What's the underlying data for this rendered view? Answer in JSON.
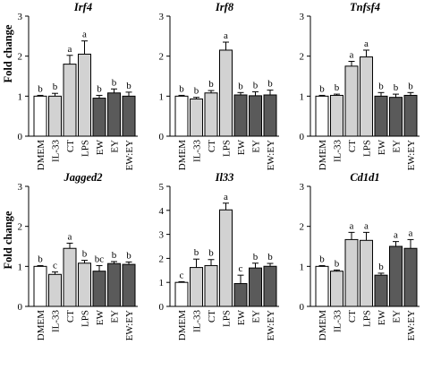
{
  "ylabel": "Fold change",
  "colors": {
    "DMEM": "#ffffff",
    "IL-33": "#d2d2d2",
    "CT": "#d2d2d2",
    "LPS": "#d2d2d2",
    "EW": "#5a5a5a",
    "EY": "#5a5a5a",
    "EW:EY": "#5a5a5a"
  },
  "chart_data": [
    {
      "type": "bar",
      "title": "Irf4",
      "categories": [
        "DMEM",
        "IL-33",
        "CT",
        "LPS",
        "EW",
        "EY",
        "EW:EY"
      ],
      "values": [
        1.0,
        1.0,
        1.8,
        2.05,
        0.95,
        1.08,
        1.0
      ],
      "errors": [
        0.02,
        0.07,
        0.22,
        0.33,
        0.07,
        0.1,
        0.1
      ],
      "sig_letters": [
        "b",
        "b",
        "a",
        "a",
        "b",
        "b",
        "b"
      ],
      "ylim": [
        0,
        3
      ],
      "yticks": [
        0,
        1,
        2,
        3
      ]
    },
    {
      "type": "bar",
      "title": "Irf8",
      "categories": [
        "DMEM",
        "IL-33",
        "CT",
        "LPS",
        "EW",
        "EY",
        "EW:EY"
      ],
      "values": [
        1.0,
        0.93,
        1.08,
        2.15,
        1.03,
        1.01,
        1.03
      ],
      "errors": [
        0.02,
        0.04,
        0.06,
        0.2,
        0.06,
        0.1,
        0.12
      ],
      "sig_letters": [
        "b",
        "b",
        "b",
        "a",
        "b",
        "b",
        "b"
      ],
      "ylim": [
        0,
        3
      ],
      "yticks": [
        0,
        1,
        2,
        3
      ]
    },
    {
      "type": "bar",
      "title": "Tnfsf4",
      "categories": [
        "DMEM",
        "IL-33",
        "CT",
        "LPS",
        "EW",
        "EY",
        "EW:EY"
      ],
      "values": [
        1.0,
        1.02,
        1.75,
        1.98,
        1.0,
        0.97,
        1.02
      ],
      "errors": [
        0.02,
        0.03,
        0.12,
        0.17,
        0.09,
        0.08,
        0.07
      ],
      "sig_letters": [
        "b",
        "b",
        "a",
        "a",
        "b",
        "b",
        "b"
      ],
      "ylim": [
        0,
        3
      ],
      "yticks": [
        0,
        1,
        2,
        3
      ]
    },
    {
      "type": "bar",
      "title": "Jagged2",
      "categories": [
        "DMEM",
        "IL-33",
        "CT",
        "LPS",
        "EW",
        "EY",
        "EW:EY"
      ],
      "values": [
        1.0,
        0.8,
        1.45,
        1.08,
        0.88,
        1.07,
        1.05
      ],
      "errors": [
        0.02,
        0.06,
        0.13,
        0.07,
        0.14,
        0.05,
        0.06
      ],
      "sig_letters": [
        "b",
        "c",
        "a",
        "b",
        "bc",
        "b",
        "b"
      ],
      "ylim": [
        0,
        3
      ],
      "yticks": [
        0,
        1,
        2,
        3
      ]
    },
    {
      "type": "bar",
      "title": "Il33",
      "categories": [
        "DMEM",
        "IL-33",
        "CT",
        "LPS",
        "EW",
        "EY",
        "EW:EY"
      ],
      "values": [
        1.0,
        1.62,
        1.7,
        4.02,
        0.95,
        1.6,
        1.67
      ],
      "errors": [
        0.03,
        0.35,
        0.25,
        0.28,
        0.35,
        0.2,
        0.12
      ],
      "sig_letters": [
        "c",
        "b",
        "b",
        "a",
        "c",
        "b",
        "b"
      ],
      "ylim": [
        0,
        5
      ],
      "yticks": [
        0,
        1,
        2,
        3,
        4,
        5
      ]
    },
    {
      "type": "bar",
      "title": "Cd1d1",
      "categories": [
        "DMEM",
        "IL-33",
        "CT",
        "LPS",
        "EW",
        "EY",
        "EW:EY"
      ],
      "values": [
        1.0,
        0.88,
        1.67,
        1.65,
        0.78,
        1.5,
        1.45
      ],
      "errors": [
        0.02,
        0.03,
        0.18,
        0.2,
        0.05,
        0.12,
        0.22
      ],
      "sig_letters": [
        "b",
        "b",
        "a",
        "a",
        "b",
        "a",
        "a"
      ],
      "ylim": [
        0,
        3
      ],
      "yticks": [
        0,
        1,
        2,
        3
      ]
    }
  ]
}
